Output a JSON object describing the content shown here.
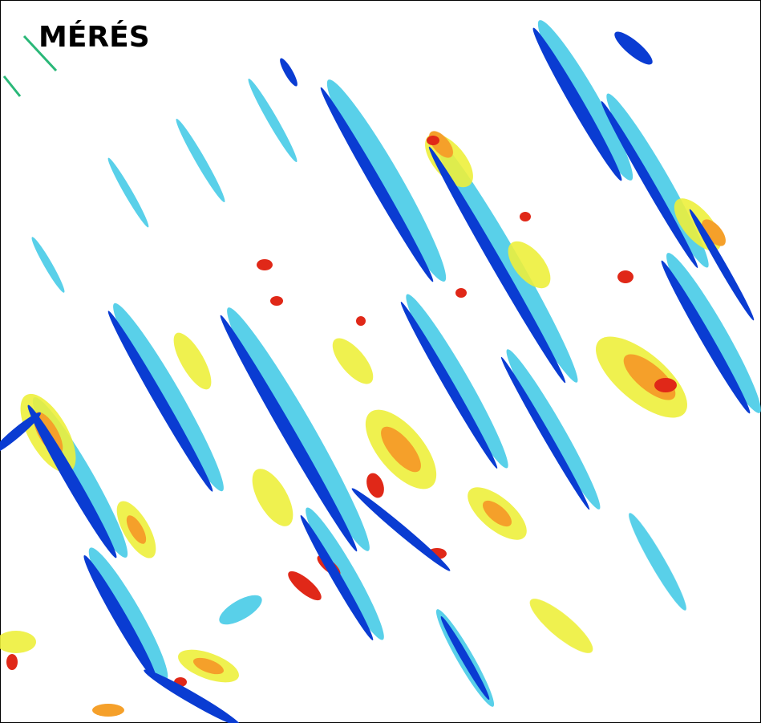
{
  "title": "MÉRÉS"
}
